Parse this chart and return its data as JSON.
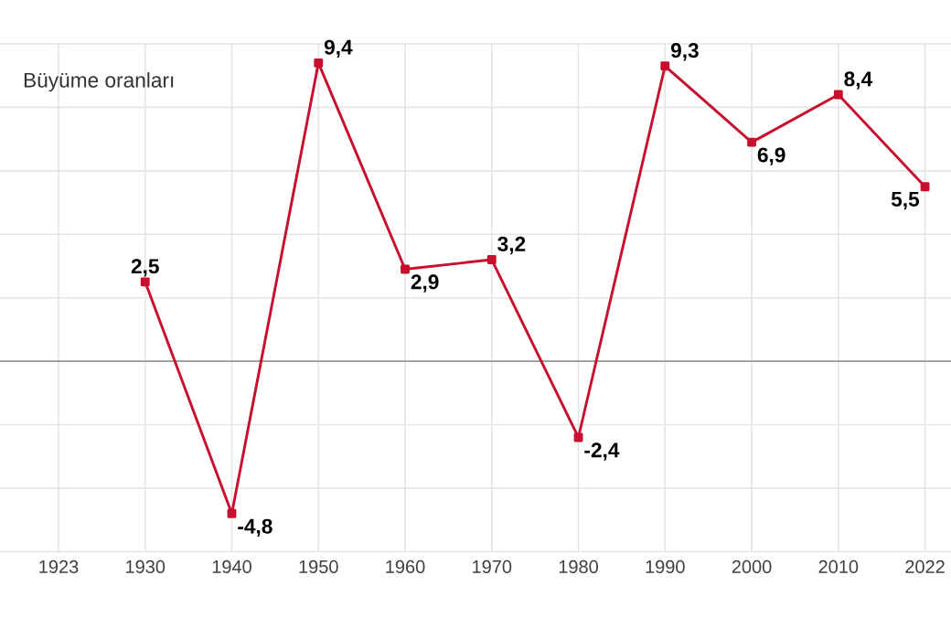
{
  "chart_data": {
    "type": "line",
    "title": "Büyüme oranları",
    "categories": [
      "1923",
      "1930",
      "1940",
      "1950",
      "1960",
      "1970",
      "1980",
      "1990",
      "2000",
      "2010",
      "2022"
    ],
    "values": [
      null,
      2.5,
      -4.8,
      9.4,
      2.9,
      3.2,
      -2.4,
      9.3,
      6.9,
      8.4,
      5.5
    ],
    "value_labels": [
      null,
      "2,5",
      "-4,8",
      "9,4",
      "2,9",
      "3,2",
      "-2,4",
      "9,3",
      "6,9",
      "8,4",
      "5,5"
    ],
    "color": "#c8102e",
    "marker": "square",
    "line_style": "solid",
    "ylim": [
      -6,
      10
    ],
    "yticks": [
      {
        "value": -6,
        "label": null
      },
      {
        "value": -4,
        "label": null
      },
      {
        "value": -2,
        "label": null
      },
      {
        "value": 0,
        "label": null
      },
      {
        "value": 2,
        "label": null
      },
      {
        "value": 4,
        "label": null
      },
      {
        "value": 6,
        "label": null
      },
      {
        "value": 8,
        "label": null
      },
      {
        "value": 10,
        "label": null
      }
    ],
    "tick_labels": "x",
    "grid": true,
    "ref_lines": [
      {
        "axis": "y",
        "value": 0,
        "color": "#999999"
      }
    ]
  }
}
